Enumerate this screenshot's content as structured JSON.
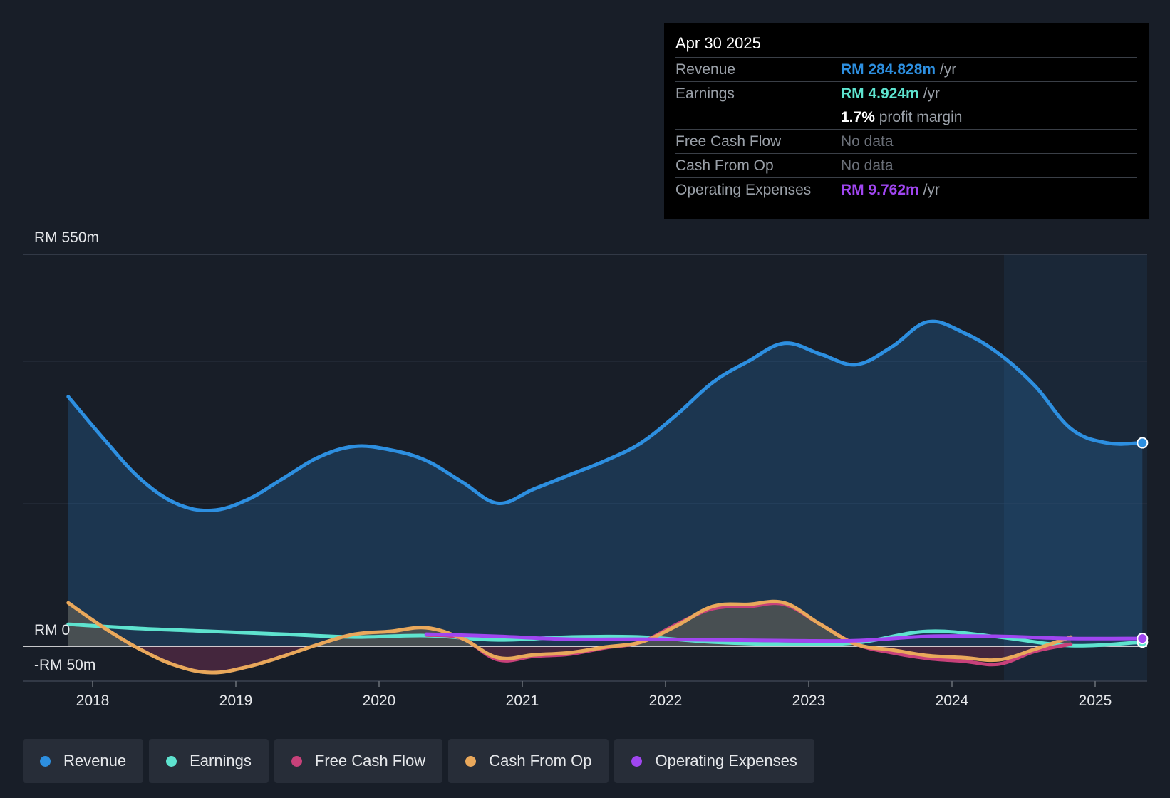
{
  "colors": {
    "revenue": "#2d8fe0",
    "earnings": "#5ee3cf",
    "free_cash_flow": "#c8417a",
    "cash_from_op": "#e9a85b",
    "operating_expenses": "#a046f0",
    "background": "#181e28"
  },
  "tooltip": {
    "date": "Apr 30 2025",
    "rows": [
      {
        "label": "Revenue",
        "value": "RM 284.828m",
        "unit": "/yr"
      },
      {
        "label": "Earnings",
        "value": "RM 4.924m",
        "unit": "/yr"
      },
      {
        "label": "",
        "value": "1.7%",
        "unit": "profit margin"
      },
      {
        "label": "Free Cash Flow",
        "value": "No data",
        "unit": ""
      },
      {
        "label": "Cash From Op",
        "value": "No data",
        "unit": ""
      },
      {
        "label": "Operating Expenses",
        "value": "RM 9.762m",
        "unit": "/yr"
      }
    ]
  },
  "legend": [
    {
      "label": "Revenue",
      "color": "#2d8fe0"
    },
    {
      "label": "Earnings",
      "color": "#5ee3cf"
    },
    {
      "label": "Free Cash Flow",
      "color": "#c8417a"
    },
    {
      "label": "Cash From Op",
      "color": "#e9a85b"
    },
    {
      "label": "Operating Expenses",
      "color": "#a046f0"
    }
  ],
  "chart_data": {
    "type": "line",
    "title": "",
    "ylim": [
      -50,
      550
    ],
    "y_tick_labels": {
      "top": "RM 550m",
      "zero": "RM 0",
      "bottom": "-RM 50m"
    },
    "x_ticks": [
      2018,
      2019,
      2020,
      2021,
      2022,
      2023,
      2024,
      2025
    ],
    "xlim": [
      2017.5,
      2025.33
    ],
    "forecast_start": 2024.33,
    "series": [
      {
        "name": "Revenue",
        "x": [
          2017.83,
          2018.08,
          2018.33,
          2018.58,
          2018.83,
          2019.08,
          2019.33,
          2019.58,
          2019.83,
          2020.08,
          2020.33,
          2020.58,
          2020.83,
          2021.08,
          2021.33,
          2021.58,
          2021.83,
          2022.08,
          2022.33,
          2022.58,
          2022.83,
          2023.08,
          2023.33,
          2023.58,
          2023.83,
          2024.08,
          2024.33,
          2024.58,
          2024.83,
          2025.08,
          2025.33
        ],
        "values": [
          350,
          290,
          235,
          200,
          190,
          205,
          235,
          265,
          280,
          275,
          260,
          230,
          200,
          220,
          240,
          260,
          285,
          325,
          370,
          400,
          425,
          410,
          395,
          420,
          455,
          440,
          410,
          365,
          305,
          285,
          285
        ]
      },
      {
        "name": "Earnings",
        "x": [
          2017.83,
          2018.33,
          2018.83,
          2019.33,
          2019.83,
          2020.33,
          2020.83,
          2021.33,
          2021.83,
          2022.33,
          2022.83,
          2023.33,
          2023.83,
          2024.33,
          2024.83,
          2025.33
        ],
        "values": [
          30,
          24,
          20,
          16,
          12,
          14,
          8,
          12,
          12,
          5,
          2,
          4,
          20,
          12,
          0,
          5
        ]
      },
      {
        "name": "Free Cash Flow",
        "x": [
          2020.33,
          2020.58,
          2020.83,
          2021.08,
          2021.33,
          2021.58,
          2021.83,
          2022.08,
          2022.33,
          2022.58,
          2022.83,
          2023.08,
          2023.33,
          2023.58,
          2023.83,
          2024.08,
          2024.33,
          2024.58,
          2024.83
        ],
        "values": [
          15,
          10,
          -20,
          -15,
          -12,
          -3,
          5,
          30,
          52,
          55,
          58,
          30,
          2,
          -10,
          -18,
          -22,
          -26,
          -8,
          2
        ]
      },
      {
        "name": "Cash From Op",
        "x": [
          2017.83,
          2018.08,
          2018.33,
          2018.58,
          2018.83,
          2019.08,
          2019.33,
          2019.58,
          2019.83,
          2020.08,
          2020.33,
          2020.58,
          2020.83,
          2021.08,
          2021.33,
          2021.58,
          2021.83,
          2022.08,
          2022.33,
          2022.58,
          2022.83,
          2023.08,
          2023.33,
          2023.58,
          2023.83,
          2024.08,
          2024.33,
          2024.58,
          2024.83
        ],
        "values": [
          60,
          25,
          -5,
          -28,
          -38,
          -30,
          -15,
          2,
          16,
          20,
          25,
          10,
          -17,
          -13,
          -10,
          -2,
          5,
          28,
          55,
          58,
          60,
          30,
          2,
          -6,
          -14,
          -17,
          -20,
          -5,
          12
        ]
      },
      {
        "name": "Operating Expenses",
        "x": [
          2020.33,
          2020.83,
          2021.33,
          2021.83,
          2022.33,
          2022.83,
          2023.33,
          2023.83,
          2024.33,
          2024.83,
          2025.33
        ],
        "values": [
          16,
          13,
          9,
          9,
          8,
          7,
          7,
          13,
          13,
          10,
          10
        ]
      }
    ]
  }
}
